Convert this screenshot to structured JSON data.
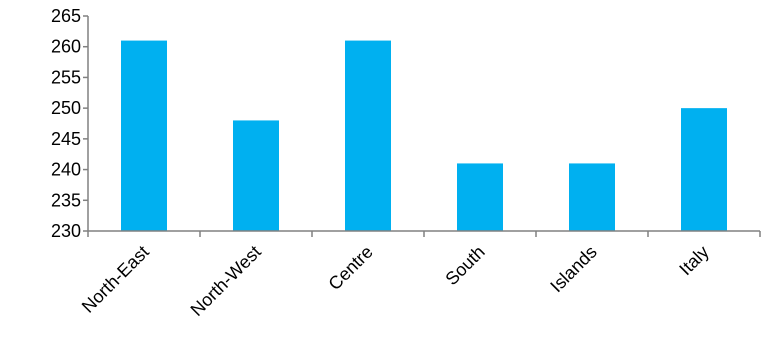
{
  "chart_data": {
    "type": "bar",
    "title": "",
    "xlabel": "",
    "ylabel": "",
    "categories": [
      "North-East",
      "North-West",
      "Centre",
      "South",
      "Islands",
      "Italy"
    ],
    "values": [
      261,
      248,
      261,
      241,
      241,
      250
    ],
    "ylim": [
      230,
      265
    ],
    "yticks": [
      230,
      235,
      240,
      245,
      250,
      255,
      260,
      265
    ],
    "bar_color": "#00B0F0",
    "grid": false,
    "legend": "none"
  }
}
